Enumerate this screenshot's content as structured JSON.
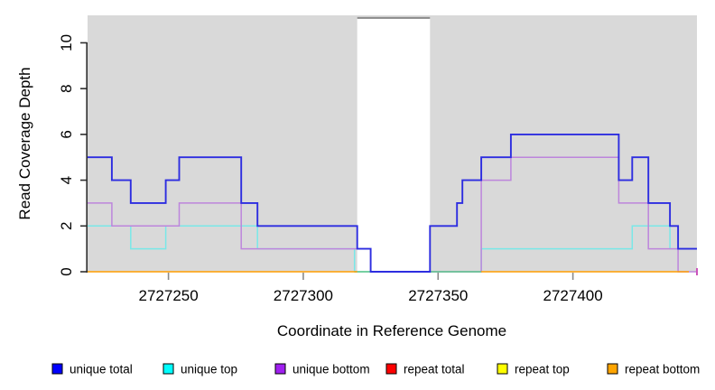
{
  "chart_data": {
    "type": "line",
    "subtype": "step-coverage-plot",
    "title": "",
    "xlabel": "Coordinate in Reference Genome",
    "ylabel": "Read Coverage Depth",
    "xlim": [
      2727220,
      2727446
    ],
    "ylim": [
      0,
      11.2
    ],
    "x_ticks": [
      "2727250",
      "2727300",
      "2727350",
      "2727400"
    ],
    "x_tick_values": [
      2727250,
      2727300,
      2727350,
      2727400
    ],
    "y_ticks": [
      "0",
      "2",
      "4",
      "6",
      "8",
      "10"
    ],
    "y_tick_values": [
      0,
      2,
      4,
      6,
      8,
      10
    ],
    "grid": false,
    "plot_background": "#d9d9d9",
    "masked_region": {
      "x_start": 2727320,
      "x_end": 2727347,
      "fill": "#ffffff",
      "top_border_color": "#8a8a8a"
    },
    "legend_position": "bottom",
    "legend": {
      "items": [
        {
          "label": "unique total",
          "color": "#0000ff"
        },
        {
          "label": "unique top",
          "color": "#00ffff"
        },
        {
          "label": "unique bottom",
          "color": "#a020f0"
        },
        {
          "label": "repeat total",
          "color": "#ff0000"
        },
        {
          "label": "repeat top",
          "color": "#ffff00"
        },
        {
          "label": "repeat bottom",
          "color": "#ffa500"
        }
      ]
    },
    "series": [
      {
        "name": "unique top",
        "line_color": "#79e8e8",
        "segments": [
          [
            [
              2727220,
              2
            ],
            [
              2727236,
              1
            ],
            [
              2727249,
              2
            ],
            [
              2727283,
              1
            ],
            [
              2727319,
              0
            ],
            [
              2727366,
              1
            ],
            [
              2727422,
              2
            ],
            [
              2727436,
              1
            ],
            [
              2727446,
              1
            ]
          ]
        ]
      },
      {
        "name": "unique bottom",
        "line_color": "#bd85dc",
        "segments": [
          [
            [
              2727220,
              3
            ],
            [
              2727229,
              2
            ],
            [
              2727254,
              3
            ],
            [
              2727277,
              1
            ],
            [
              2727325,
              0
            ],
            [
              2727366,
              4
            ],
            [
              2727377,
              5
            ],
            [
              2727417,
              3
            ],
            [
              2727428,
              1
            ],
            [
              2727439,
              0
            ],
            [
              2727446,
              0
            ]
          ]
        ]
      },
      {
        "name": "unique top + repeat top overlap",
        "line_color": "#5fc487",
        "segments": [
          [
            [
              2727319,
              0
            ],
            [
              2727366,
              0
            ]
          ]
        ]
      },
      {
        "name": "repeat bottom",
        "line_color": "#ff9d00",
        "segments": [
          [
            [
              2727220,
              0
            ],
            [
              2727320,
              0
            ]
          ],
          [
            [
              2727366,
              0
            ],
            [
              2727443,
              0
            ]
          ]
        ]
      },
      {
        "name": "unique total",
        "line_color": "#2d2de0",
        "segments": [
          [
            [
              2727220,
              5
            ],
            [
              2727229,
              4
            ],
            [
              2727236,
              3
            ],
            [
              2727249,
              4
            ],
            [
              2727254,
              5
            ],
            [
              2727277,
              3
            ],
            [
              2727283,
              2
            ],
            [
              2727320,
              1
            ],
            [
              2727325,
              0
            ],
            [
              2727347,
              2
            ],
            [
              2727357,
              3
            ],
            [
              2727359,
              4
            ],
            [
              2727366,
              5
            ],
            [
              2727377,
              6
            ],
            [
              2727417,
              4
            ],
            [
              2727422,
              5
            ],
            [
              2727428,
              3
            ],
            [
              2727436,
              2
            ],
            [
              2727439,
              1
            ],
            [
              2727446,
              1
            ]
          ]
        ]
      }
    ],
    "end_tick": {
      "x": 2727446,
      "y": 0,
      "color": "#cc55bb"
    }
  }
}
